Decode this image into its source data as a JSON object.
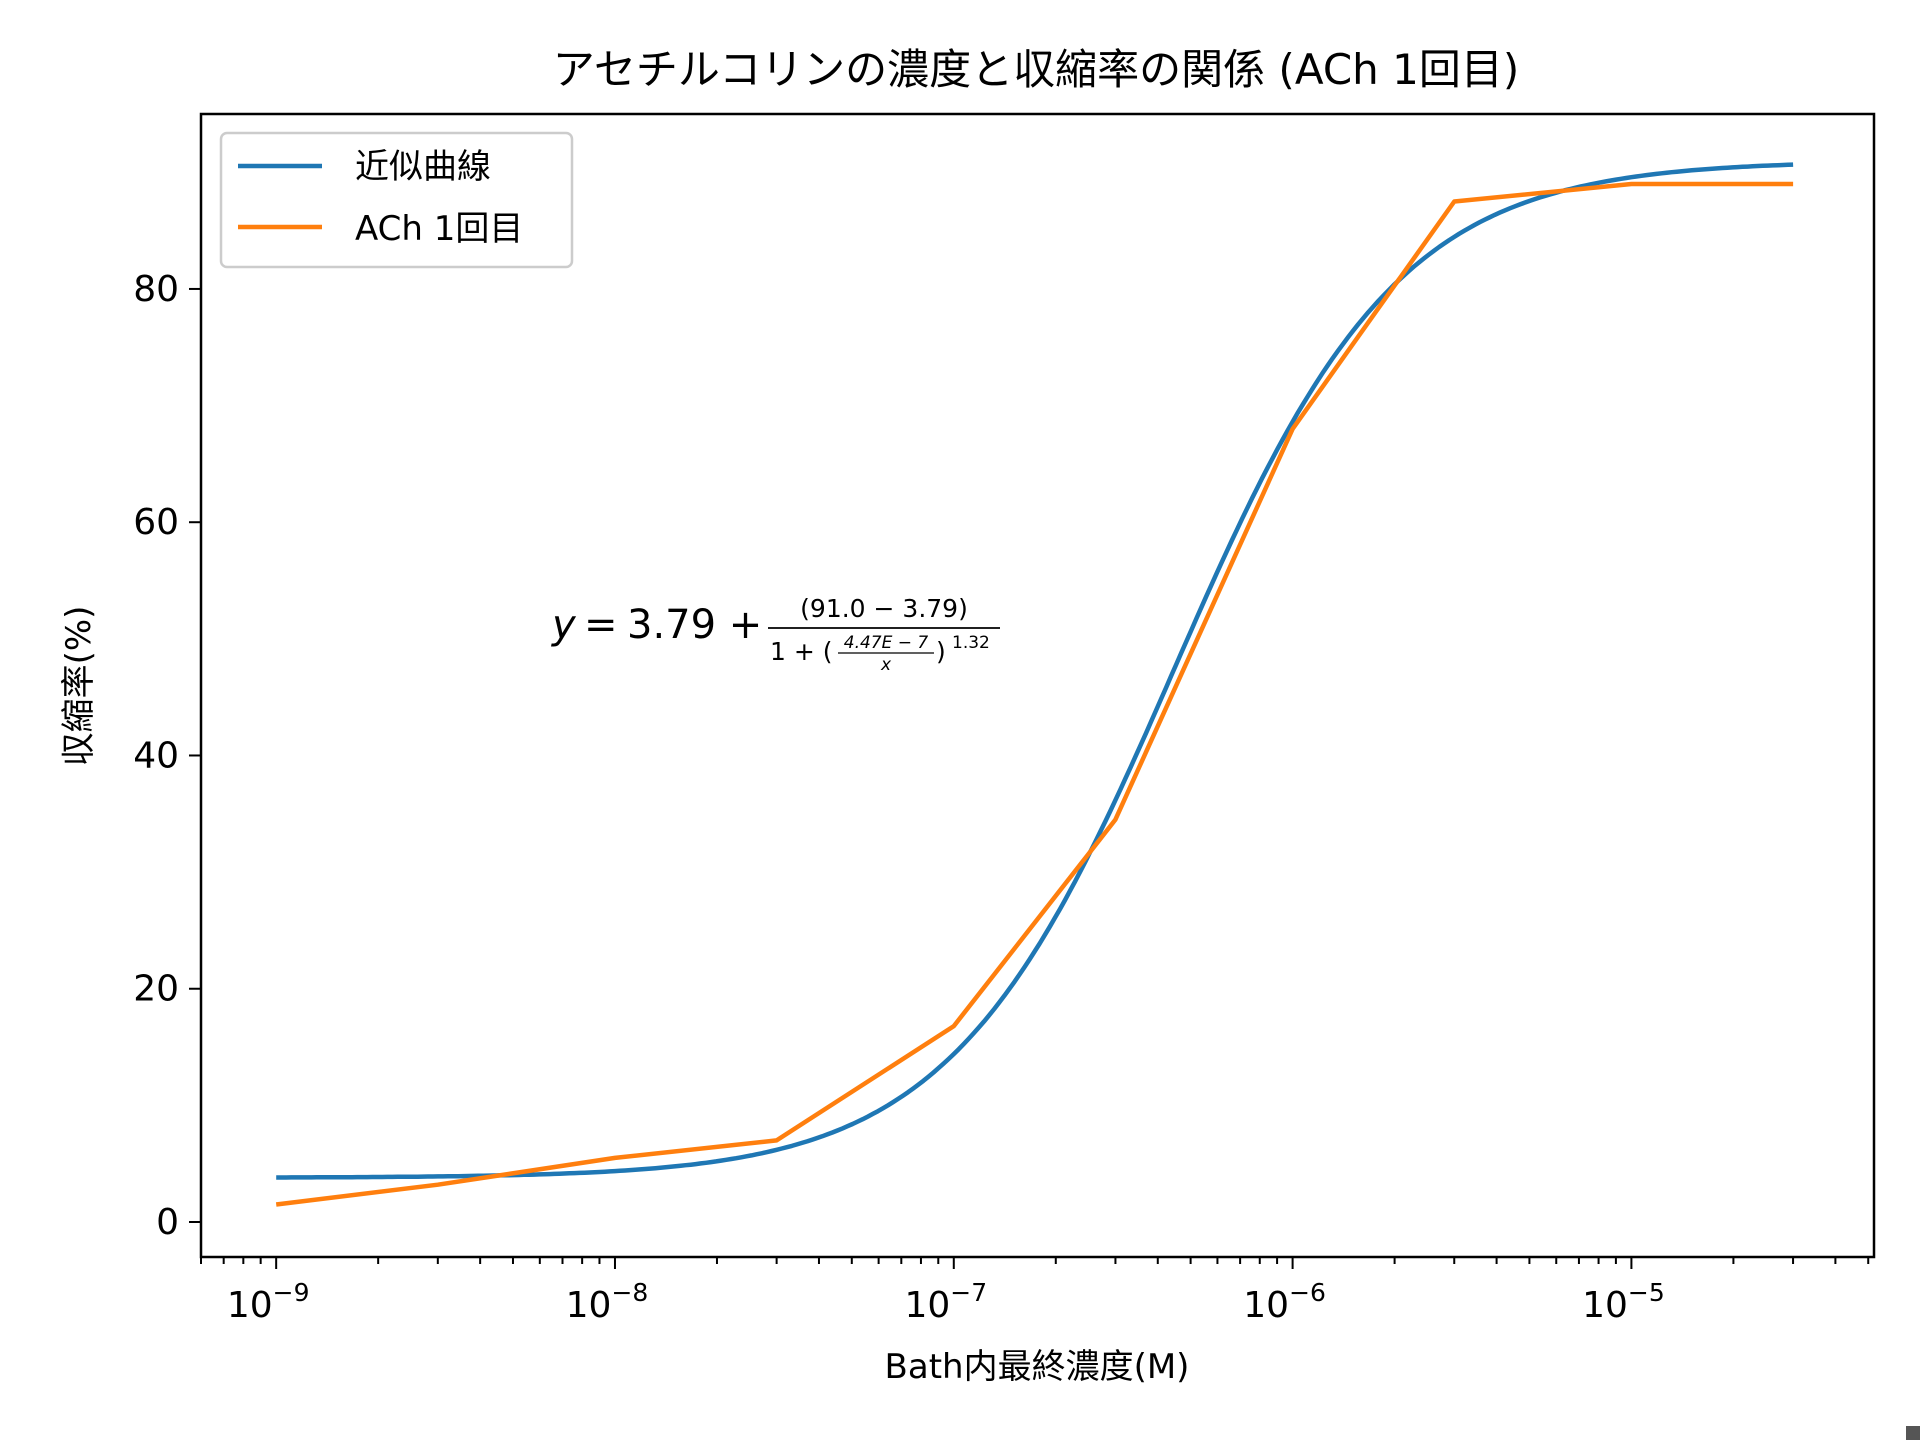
{
  "chart_data": {
    "type": "line",
    "title": "アセチルコリンの濃度と収縮率の関係 (ACh 1回目)",
    "xlabel": "Bath内最終濃度(M)",
    "ylabel": "収縮率(%)",
    "xscale": "log",
    "xlim": [
      6e-10,
      5.2e-05
    ],
    "ylim": [
      -3,
      95
    ],
    "x_ticks": [
      {
        "value": 1e-09,
        "base": "10",
        "exp": "−9"
      },
      {
        "value": 1e-08,
        "base": "10",
        "exp": "−8"
      },
      {
        "value": 1e-07,
        "base": "10",
        "exp": "−7"
      },
      {
        "value": 1e-06,
        "base": "10",
        "exp": "−6"
      },
      {
        "value": 1e-05,
        "base": "10",
        "exp": "−5"
      }
    ],
    "y_ticks": [
      0,
      20,
      40,
      60,
      80
    ],
    "y_tick_labels": [
      "0",
      "20",
      "40",
      "60",
      "80"
    ],
    "grid": false,
    "legend_position": "top-left",
    "series": [
      {
        "name": "近似曲線",
        "color": "#1f77b4",
        "kind": "fit",
        "model": {
          "bottom": 3.79,
          "top": 91.0,
          "ec50": 4.47e-07,
          "hill": 1.32
        },
        "x_range": [
          1e-09,
          3e-05
        ]
      },
      {
        "name": "ACh 1回目",
        "color": "#ff7f0e",
        "kind": "data",
        "x": [
          1e-09,
          3e-09,
          1e-08,
          3e-08,
          1e-07,
          3e-07,
          1e-06,
          3e-06,
          1e-05,
          3e-05
        ],
        "y": [
          1.5,
          3.2,
          5.5,
          7.0,
          16.8,
          34.5,
          68.0,
          87.5,
          89.0,
          89.0
        ]
      }
    ],
    "annotation": {
      "y_prefix": "y",
      "equals": "=",
      "constant_plus": "3.79 +",
      "numerator": "(91.0 − 3.79)",
      "denominator_lead": "1 + (",
      "inner_numerator": "4.47E − 7",
      "inner_denominator": "x",
      "denominator_close": ")",
      "exponent": "1.32"
    }
  }
}
